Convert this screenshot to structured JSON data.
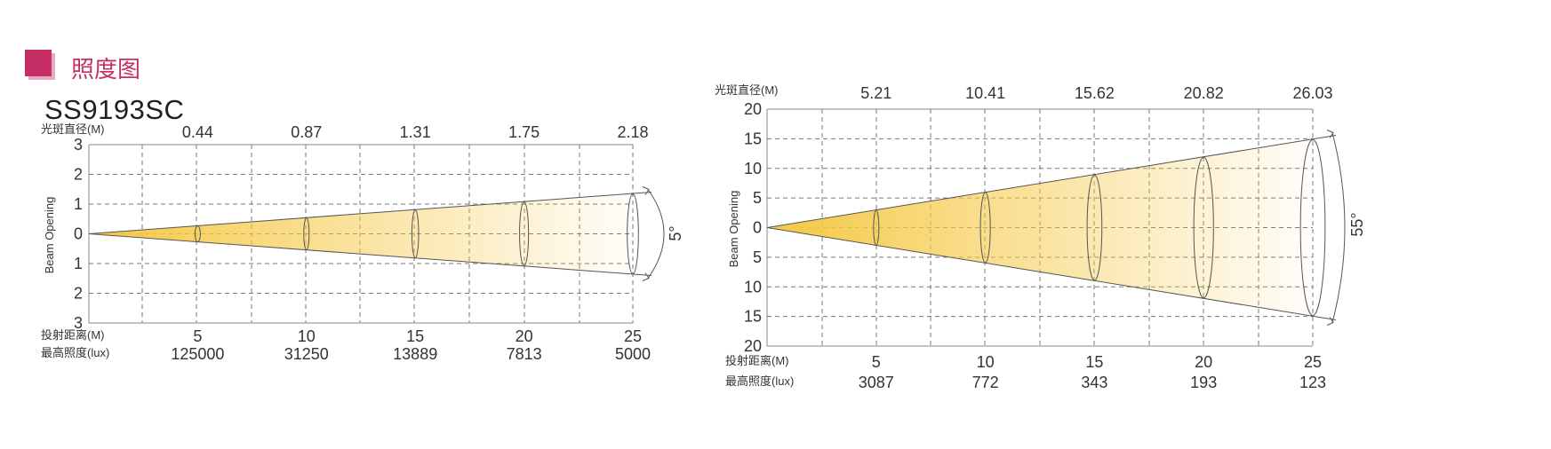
{
  "header": {
    "title": "照度图",
    "model": "SS9193SC"
  },
  "labels": {
    "diameter": "光斑直径(M)",
    "distance": "投射距离(M)",
    "lux": "最高照度(lux)",
    "beam_opening": "Beam Opening"
  },
  "colors": {
    "accent": "#c52f66",
    "accent_light": "#e8a9c3",
    "beam": "#f5c842"
  },
  "chart_data": [
    {
      "type": "beam-angle",
      "beam_angle_label": "5°",
      "diameters": [
        "0.44",
        "0.87",
        "1.31",
        "1.75",
        "2.18"
      ],
      "distances": [
        "5",
        "10",
        "15",
        "20",
        "25"
      ],
      "lux": [
        "125000",
        "31250",
        "13889",
        "7813",
        "5000"
      ],
      "y_ticks": [
        "3",
        "2",
        "1",
        "0",
        "1",
        "2",
        "3"
      ],
      "ylim": [
        -3,
        3
      ],
      "xlim": [
        0,
        25
      ],
      "grid": true
    },
    {
      "type": "beam-angle",
      "beam_angle_label": "55°",
      "diameters": [
        "5.21",
        "10.41",
        "15.62",
        "20.82",
        "26.03"
      ],
      "distances": [
        "5",
        "10",
        "15",
        "20",
        "25"
      ],
      "lux": [
        "3087",
        "772",
        "343",
        "193",
        "123"
      ],
      "y_ticks": [
        "20",
        "15",
        "10",
        "5",
        "0",
        "5",
        "10",
        "15",
        "20"
      ],
      "ylim": [
        -20,
        20
      ],
      "xlim": [
        0,
        25
      ],
      "grid": true
    }
  ]
}
